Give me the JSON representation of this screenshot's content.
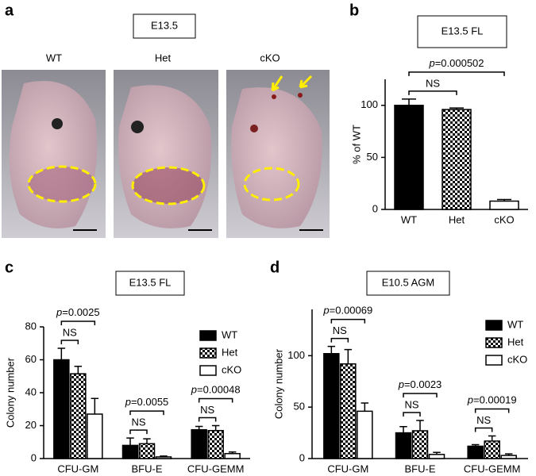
{
  "panel_a": {
    "label": "a",
    "title": "E13.5",
    "columns": [
      "WT",
      "Het",
      "cKO"
    ]
  },
  "chart_data": [
    {
      "type": "bar",
      "label": "b",
      "title": "E13.5 FL",
      "ylabel": "% of WT",
      "categories": [
        "WT",
        "Het",
        "cKO"
      ],
      "values": [
        100,
        96,
        8
      ],
      "errors": [
        6,
        1.5,
        1.5
      ],
      "colors": [
        "#000000",
        "#000000",
        "#ffffff"
      ],
      "patterns": [
        "solid",
        "checker",
        "solid"
      ],
      "ylim": [
        0,
        125
      ],
      "yticks": [
        0,
        50,
        100
      ],
      "p_values": [
        "p=0.000502"
      ],
      "ns_labels": [
        "NS"
      ]
    },
    {
      "type": "grouped_bar",
      "label": "c",
      "title": "E13.5 FL",
      "ylabel": "Colony number",
      "categories": [
        "CFU-GM",
        "BFU-E",
        "CFU-GEMM"
      ],
      "series": [
        {
          "name": "WT",
          "color": "#000000",
          "pattern": "solid",
          "values": [
            60,
            8,
            17.5
          ],
          "errors": [
            7,
            4.5,
            2
          ]
        },
        {
          "name": "Het",
          "color": "#000000",
          "pattern": "checker",
          "values": [
            51.5,
            9,
            17
          ],
          "errors": [
            4.5,
            3,
            3
          ]
        },
        {
          "name": "cKO",
          "color": "#ffffff",
          "pattern": "solid",
          "values": [
            27,
            1,
            3
          ],
          "errors": [
            9.5,
            0.5,
            1
          ]
        }
      ],
      "ylim": [
        0,
        80
      ],
      "yticks": [
        0,
        20,
        40,
        60,
        80
      ],
      "p_values": [
        "p=0.0025",
        "p=0.0055",
        "p=0.00048"
      ],
      "ns_labels": [
        "NS",
        "NS",
        "NS"
      ]
    },
    {
      "type": "grouped_bar",
      "label": "d",
      "title": "E10.5 AGM",
      "ylabel": "Colony number",
      "categories": [
        "CFU-GM",
        "BFU-E",
        "CFU-GEMM"
      ],
      "series": [
        {
          "name": "WT",
          "color": "#000000",
          "pattern": "solid",
          "values": [
            102,
            25,
            12
          ],
          "errors": [
            7,
            6,
            1.5
          ]
        },
        {
          "name": "Het",
          "color": "#000000",
          "pattern": "checker",
          "values": [
            92,
            27,
            17
          ],
          "errors": [
            14,
            10,
            5
          ]
        },
        {
          "name": "cKO",
          "color": "#ffffff",
          "pattern": "solid",
          "values": [
            46,
            4,
            3
          ],
          "errors": [
            8,
            2,
            1.5
          ]
        }
      ],
      "ylim": [
        0,
        145
      ],
      "yticks": [
        0,
        50,
        100
      ],
      "p_values": [
        "p=0.00069",
        "p=0.0023",
        "p=0.00019"
      ],
      "ns_labels": [
        "NS",
        "NS",
        "NS"
      ]
    }
  ]
}
